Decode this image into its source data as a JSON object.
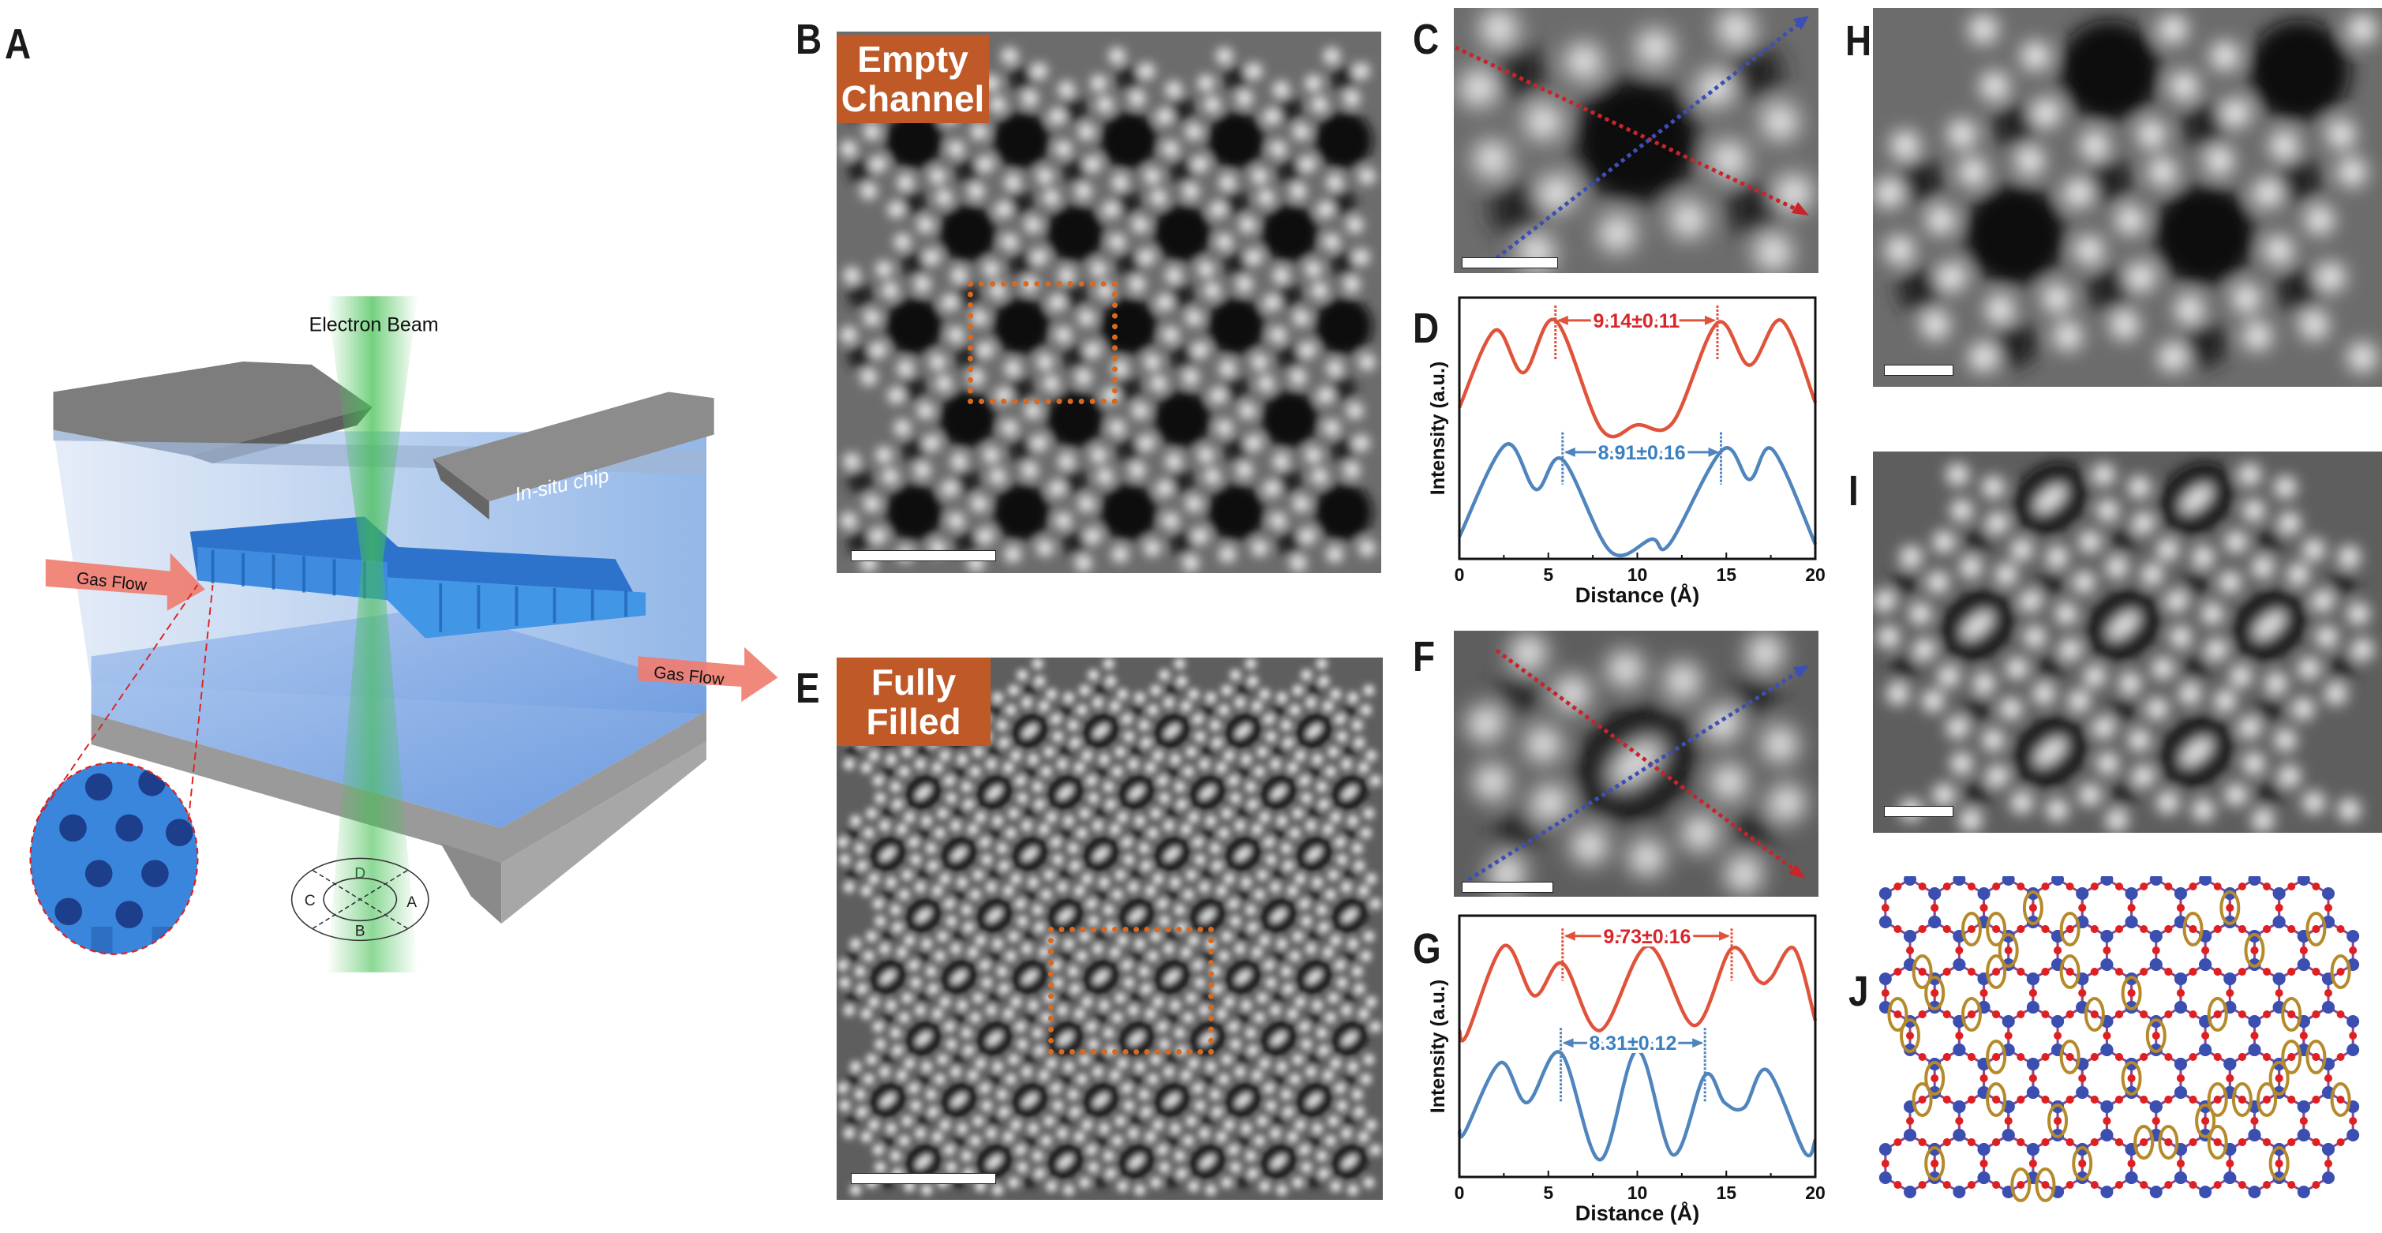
{
  "panel_labels": {
    "A": "A",
    "B": "B",
    "C": "C",
    "D": "D",
    "E": "E",
    "F": "F",
    "G": "G",
    "H": "H",
    "I": "I",
    "J": "J"
  },
  "panel_a": {
    "electron_beam": "Electron Beam",
    "in_situ_chip": "In-situ chip",
    "gas_flow_in": "Gas Flow",
    "gas_flow_out": "Gas Flow",
    "detector_segments": {
      "D": "D",
      "C": "C",
      "A": "A",
      "B": "B"
    }
  },
  "panel_b": {
    "tag_line1": "Empty",
    "tag_line2": "Channel"
  },
  "panel_e": {
    "tag_line1": "Fully",
    "tag_line2": "Filled"
  },
  "colors": {
    "tag": "#bf5a28",
    "red_profile": "#e0533a",
    "blue_profile": "#4f84bd",
    "red_label": "#d9252a",
    "blue_label": "#3a7fbf",
    "roi_box": "#d9691f",
    "si_atom": "#3b4fb0",
    "o_atom": "#e02020",
    "guest_marker": "#b58a2a"
  },
  "chart_data": [
    {
      "panel": "D",
      "type": "line",
      "title": "",
      "xlabel": "Distance (Å)",
      "ylabel": "Intensity (a.u.)",
      "xlim": [
        0,
        20
      ],
      "ylim": [
        0,
        1
      ],
      "xticks": [
        "0",
        "5",
        "10",
        "15",
        "20"
      ],
      "xtick_values": [
        0,
        5,
        10,
        15,
        20
      ],
      "grid": false,
      "series": [
        {
          "name": "red",
          "color": "#e0533a",
          "x": [
            0,
            2,
            3.6,
            5.4,
            8,
            10,
            12,
            14.5,
            16.3,
            18.1,
            20
          ],
          "y": [
            0.59,
            0.9,
            0.73,
            0.94,
            0.5,
            0.52,
            0.53,
            0.93,
            0.76,
            0.94,
            0.61
          ]
        },
        {
          "name": "blue",
          "color": "#4f84bd",
          "x": [
            0,
            2.6,
            4.3,
            5.8,
            8.5,
            10.8,
            11.8,
            14.8,
            16.3,
            17.6,
            20
          ],
          "y": [
            0.07,
            0.44,
            0.26,
            0.38,
            0.01,
            0.06,
            0.04,
            0.42,
            0.3,
            0.42,
            0.04
          ]
        }
      ],
      "annotations": [
        {
          "text": "9.14±0.11",
          "x1": 5.4,
          "x2": 14.5,
          "y": 0.94,
          "line_from": 0.78,
          "line_to": 1.0,
          "color": "#d9252a",
          "line_color": "#e0533a"
        },
        {
          "text": "8.91±0.16",
          "x1": 5.8,
          "x2": 14.7,
          "y": 0.41,
          "line_from": 0.28,
          "line_to": 0.49,
          "color": "#3a7fbf",
          "line_color": "#4f84bd"
        }
      ]
    },
    {
      "panel": "G",
      "type": "line",
      "title": "",
      "xlabel": "Distance (Å)",
      "ylabel": "Intensity (a.u.)",
      "xlim": [
        0,
        20
      ],
      "ylim": [
        0,
        1
      ],
      "xticks": [
        "0",
        "5",
        "10",
        "15",
        "20"
      ],
      "xtick_values": [
        0,
        5,
        10,
        15,
        20
      ],
      "grid": false,
      "series": [
        {
          "name": "red",
          "color": "#e0533a",
          "x": [
            0,
            0.4,
            2.5,
            4.2,
            5.8,
            7.9,
            10.6,
            13.2,
            15.3,
            16.8,
            17.5,
            18.8,
            20
          ],
          "y": [
            0.57,
            0.55,
            0.91,
            0.71,
            0.84,
            0.57,
            0.91,
            0.59,
            0.9,
            0.77,
            0.78,
            0.9,
            0.61
          ]
        },
        {
          "name": "blue",
          "color": "#4f84bd",
          "x": [
            0,
            0.3,
            2.3,
            3.8,
            5.7,
            7.9,
            10,
            12,
            13.8,
            14.9,
            16,
            17.3,
            19.4,
            20
          ],
          "y": [
            0.17,
            0.16,
            0.44,
            0.28,
            0.48,
            0.05,
            0.49,
            0.07,
            0.39,
            0.28,
            0.26,
            0.41,
            0.08,
            0.13
          ]
        }
      ],
      "annotations": [
        {
          "text": "9.73±0.16",
          "x1": 5.8,
          "x2": 15.3,
          "y": 0.95,
          "line_from": 0.77,
          "line_to": 0.98,
          "color": "#d9252a",
          "line_color": "#e0533a"
        },
        {
          "text": "8.31±0.12",
          "x1": 5.7,
          "x2": 13.8,
          "y": 0.52,
          "line_from": 0.28,
          "line_to": 0.58,
          "color": "#3a7fbf",
          "line_color": "#4f84bd"
        }
      ]
    }
  ]
}
